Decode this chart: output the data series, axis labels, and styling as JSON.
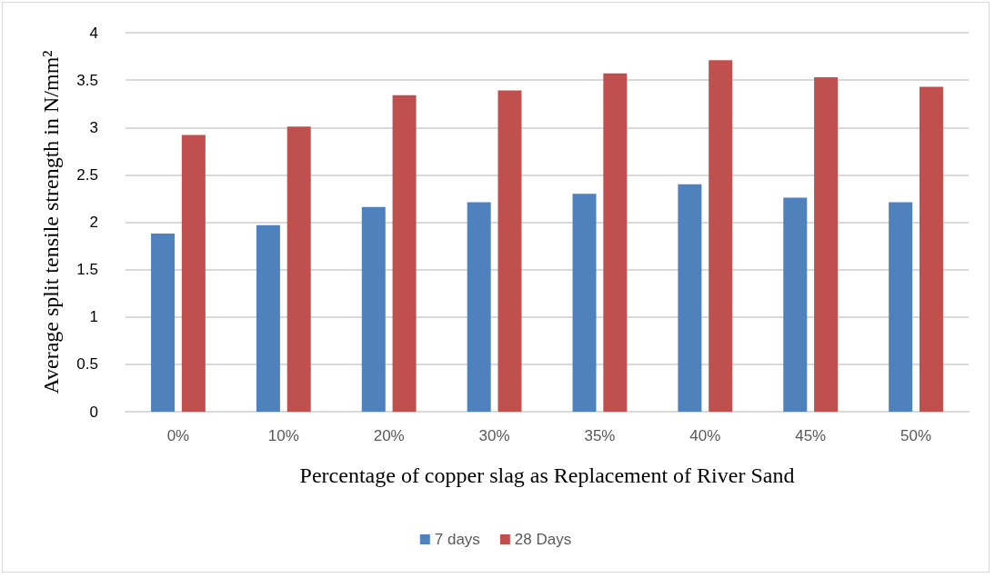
{
  "chart_data": {
    "type": "bar",
    "xlabel": "Percentage of copper slag as Replacement of River Sand",
    "ylabel": "Average split tensile strength in N/mm²",
    "categories": [
      "0%",
      "10%",
      "20%",
      "30%",
      "35%",
      "40%",
      "45%",
      "50%"
    ],
    "series": [
      {
        "name": "7 days",
        "color": "#4f81bd",
        "values": [
          1.88,
          1.97,
          2.16,
          2.21,
          2.3,
          2.4,
          2.26,
          2.21
        ]
      },
      {
        "name": "28 Days",
        "color": "#c0504d",
        "values": [
          2.92,
          3.01,
          3.34,
          3.39,
          3.57,
          3.71,
          3.53,
          3.43
        ]
      }
    ],
    "ylim": [
      0,
      4
    ],
    "yticks": [
      0,
      0.5,
      1,
      1.5,
      2,
      2.5,
      3,
      3.5,
      4
    ],
    "grid": "y",
    "legend": "bottom"
  }
}
